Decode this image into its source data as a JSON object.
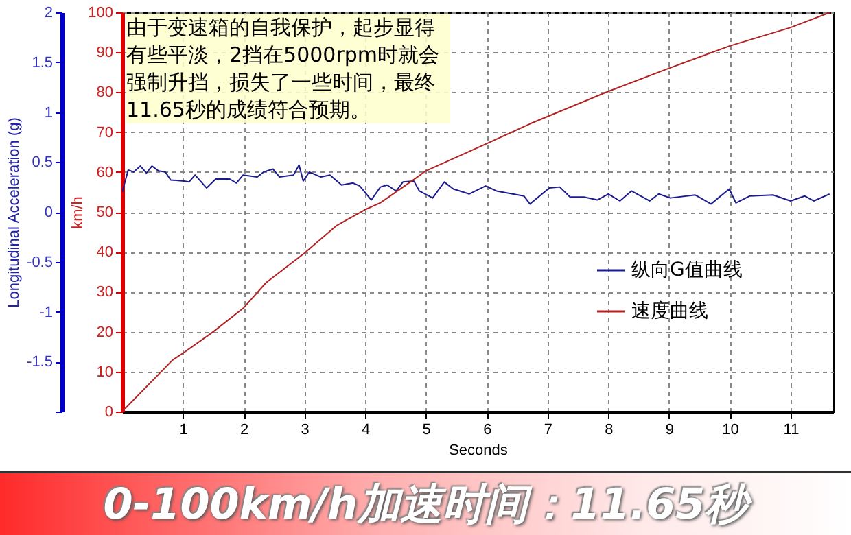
{
  "chart_data": {
    "type": "line",
    "title": "0-100km/h加速时间：11.65秒",
    "xlabel": "Seconds",
    "ylabel": "km/h",
    "y2label": "Longitudinal Acceleration (g)",
    "annotations": [
      "由于变速箱的自我保护，起步显得有些平淡，2挡在5000rpm时就会强制升挡，损失了一些时间，最终11.65秒的成绩符合预期。"
    ],
    "xlim": [
      0,
      11.7
    ],
    "xticks": [
      1,
      2,
      3,
      4,
      5,
      6,
      7,
      8,
      9,
      10,
      11
    ],
    "ylim": [
      0,
      100
    ],
    "yticks": [
      0,
      10,
      20,
      30,
      40,
      50,
      60,
      70,
      80,
      90,
      100
    ],
    "y2lim": [
      -2,
      2
    ],
    "y2ticks": [
      {
        "value": -2,
        "label": null
      },
      -1.5,
      -1,
      -0.5,
      0,
      0.5,
      1,
      1.5,
      2
    ],
    "grid": true,
    "legend": "bottom right",
    "series": [
      {
        "name": "纵向G值曲线",
        "color": "#1c1c8f",
        "axis": "y2",
        "x": [
          0,
          0.1,
          0.19,
          0.3,
          0.4,
          0.49,
          0.6,
          0.71,
          0.8,
          1.02,
          1.1,
          1.2,
          1.39,
          1.54,
          1.77,
          1.88,
          1.99,
          2.22,
          2.33,
          2.48,
          2.59,
          2.82,
          2.91,
          2.98,
          3.08,
          3.27,
          3.42,
          3.61,
          3.8,
          3.91,
          4.1,
          4.25,
          4.36,
          4.51,
          4.62,
          4.8,
          4.89,
          5.11,
          5.3,
          5.45,
          5.71,
          5.98,
          6.16,
          6.61,
          6.71,
          7.03,
          7.2,
          7.37,
          7.6,
          7.82,
          8.0,
          8.19,
          8.38,
          8.68,
          8.83,
          9.02,
          9.43,
          9.69,
          9.99,
          10.1,
          10.33,
          10.71,
          11.0,
          11.23,
          11.38,
          11.64
        ],
        "values": [
          0.2,
          0.42,
          0.4,
          0.46,
          0.39,
          0.46,
          0.41,
          0.4,
          0.32,
          0.31,
          0.3,
          0.37,
          0.24,
          0.33,
          0.33,
          0.29,
          0.37,
          0.35,
          0.4,
          0.43,
          0.35,
          0.37,
          0.47,
          0.31,
          0.4,
          0.35,
          0.37,
          0.27,
          0.29,
          0.26,
          0.12,
          0.25,
          0.27,
          0.21,
          0.3,
          0.31,
          0.21,
          0.14,
          0.3,
          0.23,
          0.18,
          0.26,
          0.21,
          0.16,
          0.08,
          0.24,
          0.25,
          0.15,
          0.15,
          0.12,
          0.18,
          0.11,
          0.21,
          0.11,
          0.18,
          0.14,
          0.17,
          0.08,
          0.23,
          0.09,
          0.16,
          0.17,
          0.11,
          0.16,
          0.11,
          0.18
        ]
      },
      {
        "name": "速度曲线",
        "color": "#b22222",
        "x": [
          0,
          0.83,
          1,
          1.5,
          2,
          2.37,
          3,
          3.53,
          4,
          4.25,
          4.77,
          5,
          5.98,
          6.73,
          8,
          8.98,
          10,
          11,
          11.65
        ],
        "values": [
          0,
          12.9,
          14.6,
          20,
          26,
          32.3,
          39.7,
          46.6,
          50.6,
          52.3,
          57.8,
          60.3,
          67,
          72.2,
          80.2,
          85.9,
          91.6,
          96.2,
          100
        ]
      }
    ]
  }
}
